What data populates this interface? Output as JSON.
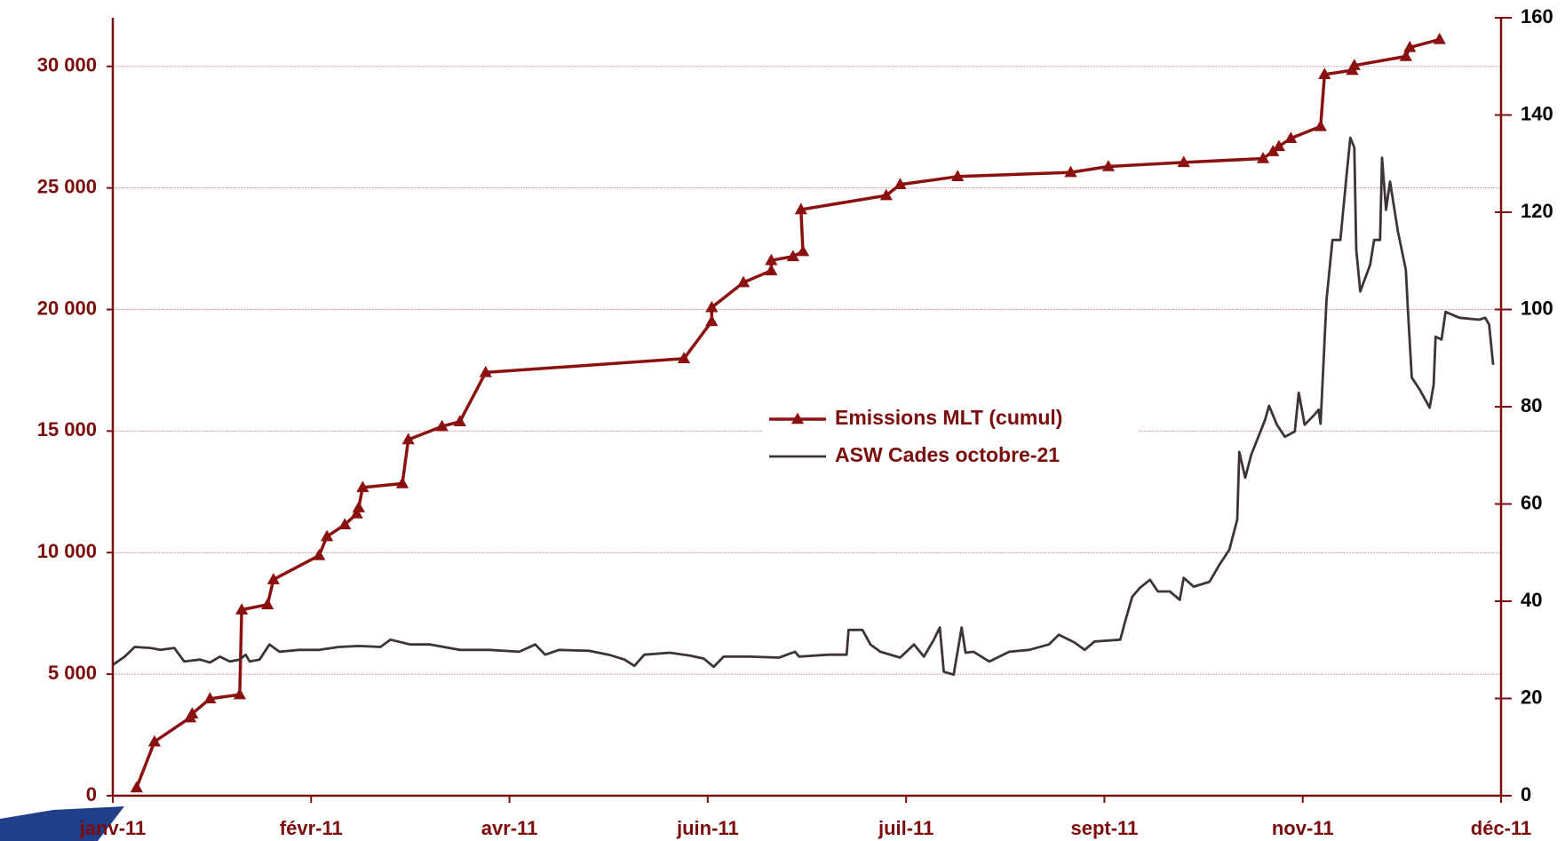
{
  "chart_data": {
    "type": "line",
    "xlim": [
      0,
      7
    ],
    "xticks": [
      {
        "value": 0,
        "label": "janv-11"
      },
      {
        "value": 1,
        "label": "févr-11"
      },
      {
        "value": 2,
        "label": "avr-11"
      },
      {
        "value": 3,
        "label": "juin-11"
      },
      {
        "value": 4,
        "label": "juil-11"
      },
      {
        "value": 5,
        "label": "sept-11"
      },
      {
        "value": 6,
        "label": "nov-11"
      },
      {
        "value": 7,
        "label": "déc-11"
      }
    ],
    "ylim": [
      0,
      32000
    ],
    "yticks": [
      {
        "value": 0,
        "label": "0"
      },
      {
        "value": 5000,
        "label": "5 000"
      },
      {
        "value": 10000,
        "label": "10 000"
      },
      {
        "value": 15000,
        "label": "15 000"
      },
      {
        "value": 20000,
        "label": "20 000"
      },
      {
        "value": 25000,
        "label": "25 000"
      },
      {
        "value": 30000,
        "label": "30 000"
      }
    ],
    "y2lim": [
      0,
      160
    ],
    "y2ticks": [
      0,
      20,
      40,
      60,
      80,
      100,
      120,
      140,
      160
    ],
    "grid": true,
    "legend": "center",
    "series": [
      {
        "name": "Emissions MLT (cumul)",
        "color": "#8b1111",
        "marker": "triangle",
        "x": [
          0.12,
          0.21,
          0.39,
          0.4,
          0.49,
          0.64,
          0.65,
          0.78,
          0.81,
          1.04,
          1.08,
          1.17,
          1.23,
          1.24,
          1.26,
          1.46,
          1.49,
          1.66,
          1.75,
          1.88,
          2.88,
          3.02,
          3.02,
          3.18,
          3.32,
          3.32,
          3.43,
          3.48,
          3.47,
          3.9,
          3.97,
          4.26,
          4.83,
          5.02,
          5.4,
          5.8,
          5.85,
          5.88,
          5.94,
          6.09,
          6.11,
          6.25,
          6.26,
          6.52,
          6.54,
          6.69
        ],
        "values": [
          330,
          2220,
          3210,
          3370,
          3990,
          4160,
          7650,
          7860,
          8890,
          9880,
          10660,
          11150,
          11600,
          11850,
          12680,
          12840,
          14650,
          15190,
          15390,
          17410,
          17980,
          19510,
          20080,
          21110,
          21600,
          22020,
          22180,
          22390,
          24110,
          24690,
          25140,
          25470,
          25640,
          25880,
          26050,
          26210,
          26500,
          26710,
          27040,
          27530,
          29670,
          29840,
          30040,
          30410,
          30780,
          31110
        ]
      },
      {
        "name": "ASW Cades octobre-21",
        "color": "#3d3535",
        "axis": "y2",
        "x": [
          0,
          0.06,
          0.11,
          0.19,
          0.24,
          0.31,
          0.36,
          0.44,
          0.49,
          0.54,
          0.59,
          0.64,
          0.67,
          0.69,
          0.74,
          0.79,
          0.84,
          0.94,
          1.04,
          1.14,
          1.24,
          1.35,
          1.4,
          1.5,
          1.6,
          1.75,
          1.9,
          2.05,
          2.13,
          2.18,
          2.25,
          2.4,
          2.5,
          2.58,
          2.63,
          2.68,
          2.81,
          2.91,
          2.98,
          3.03,
          3.08,
          3.21,
          3.36,
          3.44,
          3.46,
          3.61,
          3.7,
          3.71,
          3.78,
          3.82,
          3.87,
          3.97,
          4.04,
          4.09,
          4.14,
          4.17,
          4.19,
          4.24,
          4.28,
          4.3,
          4.34,
          4.42,
          4.52,
          4.62,
          4.72,
          4.77,
          4.85,
          4.9,
          4.95,
          5.08,
          5.1,
          5.14,
          5.18,
          5.23,
          5.27,
          5.33,
          5.38,
          5.4,
          5.45,
          5.53,
          5.58,
          5.63,
          5.67,
          5.68,
          5.71,
          5.74,
          5.81,
          5.83,
          5.87,
          5.91,
          5.96,
          5.98,
          6.01,
          6.06,
          6.08,
          6.09,
          6.12,
          6.15,
          6.19,
          6.22,
          6.24,
          6.26,
          6.27,
          6.29,
          6.34,
          6.36,
          6.39,
          6.4,
          6.42,
          6.44,
          6.48,
          6.52,
          6.53,
          6.55,
          6.59,
          6.64,
          6.66,
          6.67,
          6.7,
          6.72,
          6.79,
          6.89,
          6.92,
          6.94,
          6.96
        ],
        "values": [
          26.9,
          28.6,
          30.6,
          30.4,
          30.0,
          30.4,
          27.6,
          28.0,
          27.4,
          28.6,
          27.6,
          28.0,
          29.0,
          27.6,
          28.0,
          31.1,
          29.6,
          30.0,
          30.0,
          30.6,
          30.8,
          30.6,
          32.1,
          31.1,
          31.1,
          30.0,
          30.0,
          29.6,
          31.1,
          29.0,
          30.0,
          29.8,
          29.0,
          28.0,
          26.7,
          29.0,
          29.4,
          28.8,
          28.2,
          26.5,
          28.6,
          28.6,
          28.4,
          29.6,
          28.6,
          29.0,
          29.0,
          34.1,
          34.1,
          31.1,
          29.6,
          28.4,
          31.1,
          28.6,
          32.1,
          34.6,
          25.5,
          24.9,
          34.6,
          29.4,
          29.6,
          27.6,
          29.6,
          30.0,
          31.1,
          33.1,
          31.5,
          30.0,
          31.7,
          32.1,
          35.2,
          40.9,
          42.8,
          44.4,
          42.0,
          42.0,
          40.3,
          44.8,
          43.0,
          44.0,
          47.5,
          50.6,
          56.8,
          70.7,
          65.4,
          70.1,
          77.3,
          80.2,
          76.3,
          73.8,
          74.9,
          82.9,
          76.3,
          78.4,
          79.4,
          76.5,
          102.0,
          114.3,
          114.3,
          127.1,
          135.3,
          133.3,
          112.3,
          103.7,
          109.2,
          114.3,
          114.3,
          131.2,
          120.5,
          126.3,
          116.0,
          108.2,
          100.0,
          86.0,
          83.5,
          79.8,
          84.5,
          94.4,
          93.8,
          99.5,
          98.3,
          97.9,
          98.3,
          96.9,
          88.6
        ]
      }
    ]
  }
}
